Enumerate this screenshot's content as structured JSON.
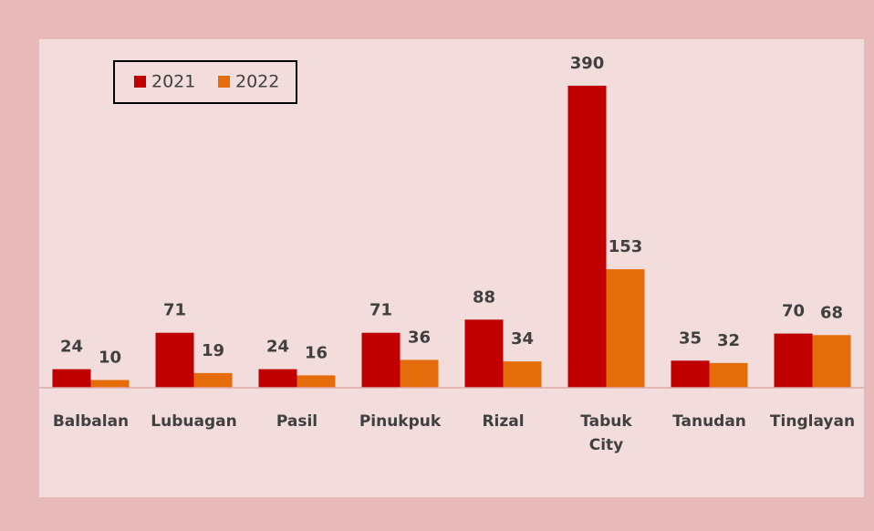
{
  "chart_data": {
    "type": "bar",
    "categories": [
      "Balbalan",
      "Lubuagan",
      "Pasil",
      "Pinukpuk",
      "Rizal",
      "Tabuk City",
      "Tanudan",
      "Tinglayan"
    ],
    "series": [
      {
        "name": "2021",
        "color": "#c00000",
        "values": [
          24,
          71,
          24,
          71,
          88,
          390,
          35,
          70
        ]
      },
      {
        "name": "2022",
        "color": "#e46c0a",
        "values": [
          10,
          19,
          16,
          36,
          34,
          153,
          32,
          68
        ]
      }
    ],
    "ylim": [
      0,
      450
    ],
    "legend": "top-left"
  }
}
